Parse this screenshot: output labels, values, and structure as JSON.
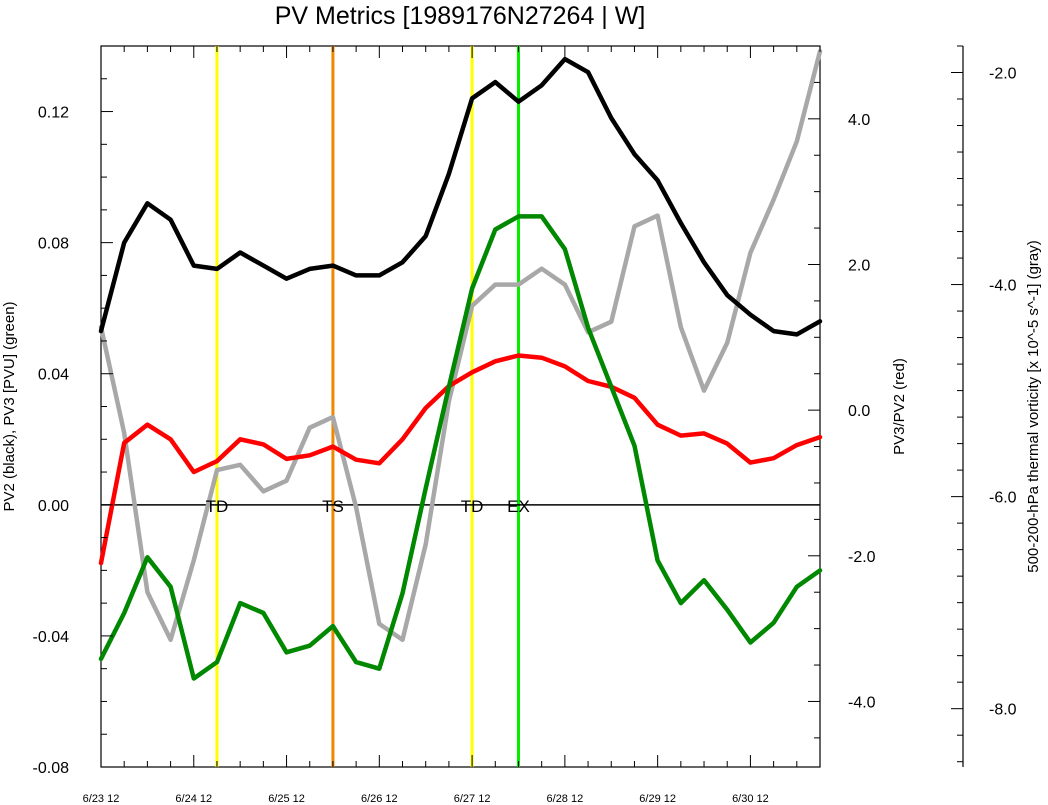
{
  "chart_data": {
    "type": "line",
    "title": "PV Metrics [1989176N27264 | W]",
    "x_tick_labels": [
      "6/23 12",
      "6/24 12",
      "6/25 12",
      "6/26 12",
      "6/27 12",
      "6/28 12",
      "6/29 12",
      "6/30 12"
    ],
    "x_range_days": [
      0,
      7.75
    ],
    "left_axis": {
      "label": "PV2 (black), PV3 [PVU] (green)",
      "range": [
        -0.08,
        0.14
      ],
      "ticks": [
        -0.08,
        -0.04,
        0.0,
        0.04,
        0.08,
        0.12
      ],
      "tick_labels": [
        "-0.08",
        "-0.04",
        "0.00",
        "0.04",
        "0.08",
        "0.12"
      ]
    },
    "right_axis": {
      "label": "PV3/PV2 (red)",
      "range": [
        -4.9,
        5.0
      ],
      "ticks": [
        -4.0,
        -2.0,
        0.0,
        2.0,
        4.0
      ],
      "tick_labels": [
        "-4.0",
        "-2.0",
        "0.0",
        "2.0",
        "4.0"
      ]
    },
    "far_right_axis": {
      "label": "500-200-hPa thermal vorticity [x 10^-5 s^-1] (gray)",
      "range": [
        -8.55,
        -1.75
      ],
      "ticks": [
        -8.0,
        -6.0,
        -4.0,
        -2.0
      ],
      "tick_labels": [
        "-8.0",
        "-6.0",
        "-4.0",
        "-2.0"
      ]
    },
    "zero_line": 0.0,
    "events": [
      {
        "label": "TD",
        "x": 1.25,
        "color": "#ffff00"
      },
      {
        "label": "TS",
        "x": 2.5,
        "color": "#ee8800"
      },
      {
        "label": "TD",
        "x": 4.0,
        "color": "#ffff00"
      },
      {
        "label": "EX",
        "x": 4.5,
        "color": "#00ee00"
      }
    ],
    "series": [
      {
        "name": "PV2",
        "color": "#000000",
        "axis": "left",
        "x": [
          0,
          0.25,
          0.5,
          0.75,
          1,
          1.25,
          1.5,
          1.75,
          2,
          2.25,
          2.5,
          2.75,
          3,
          3.25,
          3.5,
          3.75,
          4,
          4.25,
          4.5,
          4.75,
          5,
          5.25,
          5.5,
          5.75,
          6,
          6.25,
          6.5,
          6.75,
          7,
          7.25,
          7.5,
          7.75
        ],
        "values": [
          0.053,
          0.08,
          0.092,
          0.087,
          0.073,
          0.072,
          0.077,
          0.073,
          0.069,
          0.072,
          0.073,
          0.07,
          0.07,
          0.074,
          0.082,
          0.101,
          0.124,
          0.129,
          0.123,
          0.128,
          0.136,
          0.132,
          0.118,
          0.107,
          0.099,
          0.086,
          0.074,
          0.064,
          0.058,
          0.053,
          0.052,
          0.056
        ]
      },
      {
        "name": "PV3",
        "color": "#008800",
        "axis": "left",
        "x": [
          0,
          0.25,
          0.5,
          0.75,
          1,
          1.25,
          1.5,
          1.75,
          2,
          2.25,
          2.5,
          2.75,
          3,
          3.25,
          3.5,
          3.75,
          4,
          4.25,
          4.5,
          4.75,
          5,
          5.25,
          5.5,
          5.75,
          6,
          6.25,
          6.5,
          6.75,
          7,
          7.25,
          7.5,
          7.75
        ],
        "values": [
          -0.047,
          -0.033,
          -0.016,
          -0.025,
          -0.053,
          -0.048,
          -0.03,
          -0.033,
          -0.045,
          -0.043,
          -0.037,
          -0.048,
          -0.05,
          -0.027,
          0.005,
          0.036,
          0.066,
          0.084,
          0.088,
          0.088,
          0.078,
          0.054,
          0.036,
          0.018,
          -0.017,
          -0.03,
          -0.023,
          -0.032,
          -0.042,
          -0.036,
          -0.025,
          -0.02
        ]
      },
      {
        "name": "PV3/PV2",
        "color": "#ff0000",
        "axis": "right",
        "x": [
          0,
          0.25,
          0.5,
          0.75,
          1,
          1.25,
          1.5,
          1.75,
          2,
          2.25,
          2.5,
          2.75,
          3,
          3.25,
          3.5,
          3.75,
          4,
          4.25,
          4.5,
          4.75,
          5,
          5.25,
          5.5,
          5.75,
          6,
          6.25,
          6.5,
          6.75,
          7,
          7.25,
          7.5,
          7.75
        ],
        "values": [
          -2.1,
          -0.45,
          -0.2,
          -0.4,
          -0.85,
          -0.7,
          -0.4,
          -0.47,
          -0.67,
          -0.62,
          -0.5,
          -0.68,
          -0.73,
          -0.4,
          0.03,
          0.33,
          0.52,
          0.67,
          0.75,
          0.72,
          0.6,
          0.4,
          0.32,
          0.17,
          -0.2,
          -0.35,
          -0.32,
          -0.46,
          -0.72,
          -0.66,
          -0.48,
          -0.37
        ]
      },
      {
        "name": "thermal vorticity",
        "color": "#a8a8a8",
        "axis": "far_right",
        "x": [
          0,
          0.25,
          0.5,
          0.75,
          1,
          1.25,
          1.5,
          1.75,
          2,
          2.25,
          2.5,
          2.75,
          3,
          3.25,
          3.5,
          3.75,
          4,
          4.25,
          4.5,
          4.75,
          5,
          5.25,
          5.5,
          5.75,
          6,
          6.25,
          6.5,
          6.75,
          7,
          7.25,
          7.5,
          7.75
        ],
        "values": [
          -4.4,
          -5.4,
          -6.9,
          -7.35,
          -6.6,
          -5.75,
          -5.7,
          -5.95,
          -5.85,
          -5.35,
          -5.25,
          -6.1,
          -7.2,
          -7.35,
          -6.45,
          -5.1,
          -4.2,
          -4.0,
          -4.0,
          -3.85,
          -4.0,
          -4.45,
          -4.35,
          -3.45,
          -3.35,
          -4.4,
          -5.0,
          -4.55,
          -3.7,
          -3.2,
          -2.65,
          -1.8
        ]
      }
    ]
  }
}
